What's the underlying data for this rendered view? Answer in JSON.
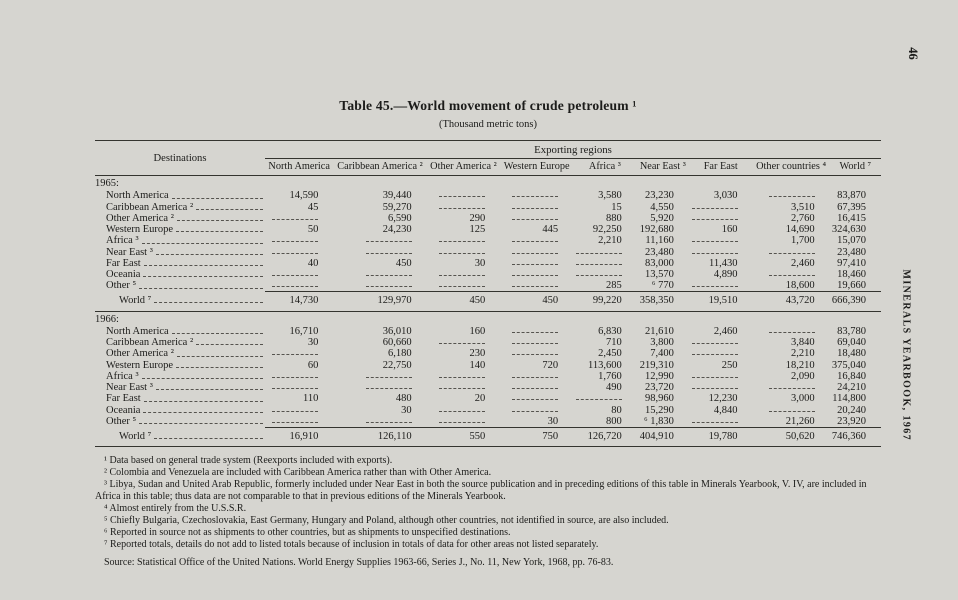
{
  "page": {
    "page_number": "46",
    "running_title": "MINERALS YEARBOOK, 1967"
  },
  "table": {
    "title": "Table 45.—World movement of crude petroleum ¹",
    "subtitle": "(Thousand metric tons)",
    "group_header": "Exporting regions",
    "dest_header": "Destinations",
    "columns": [
      "North America",
      "Caribbean America ²",
      "Other America ²",
      "Western Europe",
      "Africa ³",
      "Near East ³",
      "Far East",
      "Other countries ⁴",
      "World ⁷"
    ],
    "sections": [
      {
        "year": "1965:",
        "rows": [
          {
            "label": "North America",
            "values": [
              "14,590",
              "39,440",
              "",
              "",
              "3,580",
              "23,230",
              "3,030",
              "",
              "83,870"
            ]
          },
          {
            "label": "Caribbean America ²",
            "values": [
              "45",
              "59,270",
              "",
              "",
              "15",
              "4,550",
              "",
              "3,510",
              "67,395"
            ]
          },
          {
            "label": "Other America ²",
            "values": [
              "",
              "6,590",
              "290",
              "",
              "880",
              "5,920",
              "",
              "2,760",
              "16,415"
            ]
          },
          {
            "label": "Western Europe",
            "values": [
              "50",
              "24,230",
              "125",
              "445",
              "92,250",
              "192,680",
              "160",
              "14,690",
              "324,630"
            ]
          },
          {
            "label": "Africa ³",
            "values": [
              "",
              "",
              "",
              "",
              "2,210",
              "11,160",
              "",
              "1,700",
              "15,070"
            ]
          },
          {
            "label": "Near East ³",
            "values": [
              "",
              "",
              "",
              "",
              "",
              "23,480",
              "",
              "",
              "23,480"
            ]
          },
          {
            "label": "Far East",
            "values": [
              "40",
              "450",
              "30",
              "",
              "",
              "83,000",
              "11,430",
              "2,460",
              "97,410"
            ]
          },
          {
            "label": "Oceania",
            "values": [
              "",
              "",
              "",
              "",
              "",
              "13,570",
              "4,890",
              "",
              "18,460"
            ]
          },
          {
            "label": "Other ⁵",
            "values": [
              "",
              "",
              "",
              "",
              "285",
              "⁶ 770",
              "",
              "18,600",
              "19,660"
            ]
          }
        ],
        "total": {
          "label": "World ⁷",
          "values": [
            "14,730",
            "129,970",
            "450",
            "450",
            "99,220",
            "358,350",
            "19,510",
            "43,720",
            "666,390"
          ]
        }
      },
      {
        "year": "1966:",
        "rows": [
          {
            "label": "North America",
            "values": [
              "16,710",
              "36,010",
              "160",
              "",
              "6,830",
              "21,610",
              "2,460",
              "",
              "83,780"
            ]
          },
          {
            "label": "Caribbean America ²",
            "values": [
              "30",
              "60,660",
              "",
              "",
              "710",
              "3,800",
              "",
              "3,840",
              "69,040"
            ]
          },
          {
            "label": "Other America ²",
            "values": [
              "",
              "6,180",
              "230",
              "",
              "2,450",
              "7,400",
              "",
              "2,210",
              "18,480"
            ]
          },
          {
            "label": "Western Europe",
            "values": [
              "60",
              "22,750",
              "140",
              "720",
              "113,600",
              "219,310",
              "250",
              "18,210",
              "375,040"
            ]
          },
          {
            "label": "Africa ³",
            "values": [
              "",
              "",
              "",
              "",
              "1,760",
              "12,990",
              "",
              "2,090",
              "16,840"
            ]
          },
          {
            "label": "Near East ³",
            "values": [
              "",
              "",
              "",
              "",
              "490",
              "23,720",
              "",
              "",
              "24,210"
            ]
          },
          {
            "label": "Far East",
            "values": [
              "110",
              "480",
              "20",
              "",
              "",
              "98,960",
              "12,230",
              "3,000",
              "114,800"
            ]
          },
          {
            "label": "Oceania",
            "values": [
              "",
              "30",
              "",
              "",
              "80",
              "15,290",
              "4,840",
              "",
              "20,240"
            ]
          },
          {
            "label": "Other ⁵",
            "values": [
              "",
              "",
              "",
              "30",
              "800",
              "⁶ 1,830",
              "",
              "21,260",
              "23,920"
            ]
          }
        ],
        "total": {
          "label": "World ⁷",
          "values": [
            "16,910",
            "126,110",
            "550",
            "750",
            "126,720",
            "404,910",
            "19,780",
            "50,620",
            "746,360"
          ]
        }
      }
    ]
  },
  "footnotes": [
    "¹ Data based on general trade system (Reexports included with exports).",
    "² Colombia and Venezuela are included with Caribbean America rather than with Other America.",
    "³ Libya, Sudan and United Arab Republic, formerly included under Near East in both the source publication and in preceding editions of this table in Minerals Yearbook, V. IV, are included in Africa in this table; thus data are not comparable to that in previous editions of the Minerals Yearbook.",
    "⁴ Almost entirely from the U.S.S.R.",
    "⁵ Chiefly Bulgaria, Czechoslovakia, East Germany, Hungary and Poland, although other countries, not identified in source, are also included.",
    "⁶ Reported in source not as shipments to other countries, but as shipments to unspecified destinations.",
    "⁷ Reported totals, details do not add to listed totals because of inclusion in totals of data for other areas not listed separately."
  ],
  "source": "Source: Statistical Office of the United Nations. World Energy Supplies 1963-66, Series J., No. 11, New York, 1968, pp. 76-83."
}
